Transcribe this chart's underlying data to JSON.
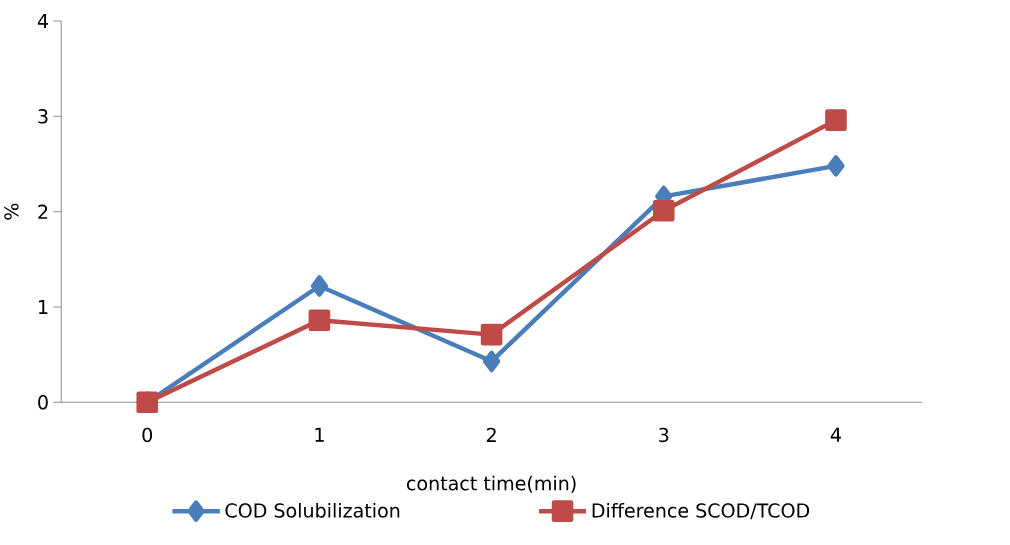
{
  "chart_data": {
    "type": "line",
    "xlabel": "contact time(min)",
    "ylabel": "%",
    "categories": [
      "0",
      "1",
      "2",
      "3",
      "4"
    ],
    "series": [
      {
        "name": "COD Solubilization",
        "color": "#4a7ebb",
        "marker": "diamond",
        "values": [
          0,
          1.22,
          0.43,
          2.16,
          2.48
        ]
      },
      {
        "name": "Difference SCOD/TCOD",
        "color": "#be4b48",
        "marker": "square",
        "values": [
          0,
          0.86,
          0.71,
          2.01,
          2.96
        ]
      }
    ],
    "ylim": [
      0,
      4
    ],
    "yticks": [
      0,
      1,
      2,
      3,
      4
    ],
    "grid": false,
    "legend": "bottom",
    "line_style": "solid"
  }
}
